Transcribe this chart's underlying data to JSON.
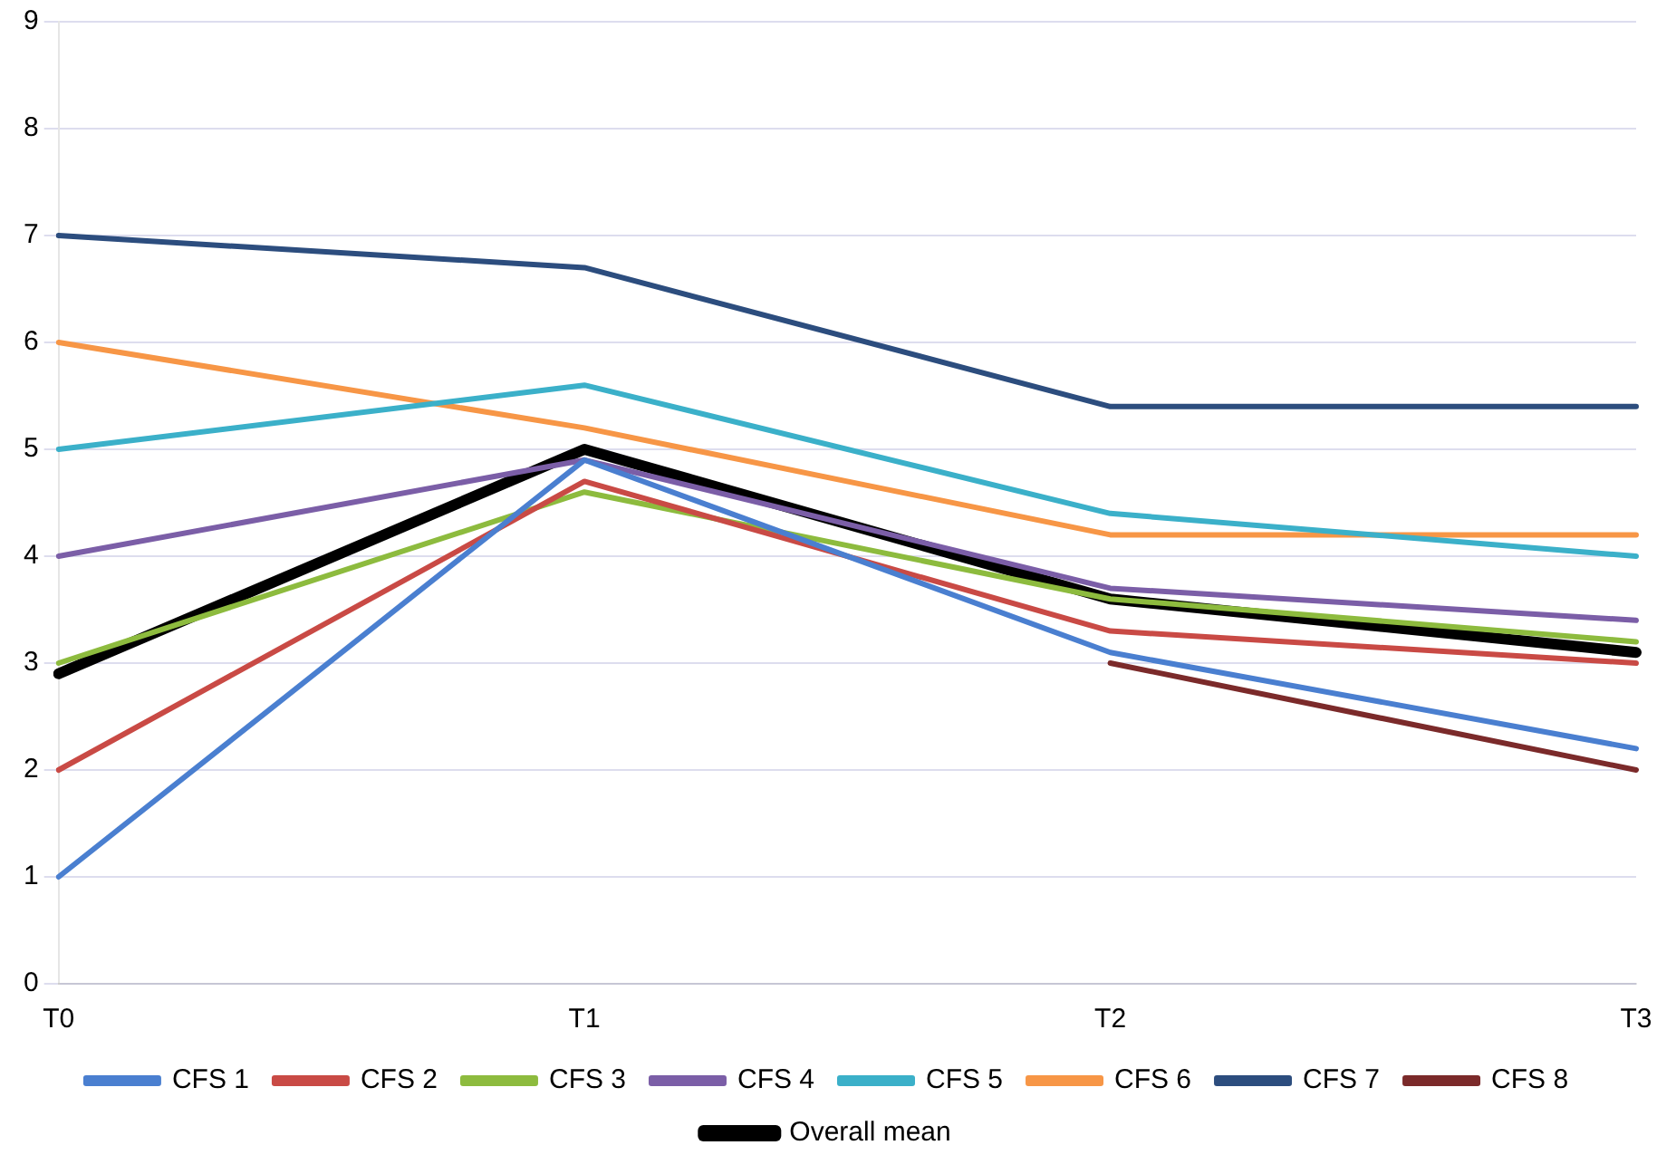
{
  "chart_data": {
    "type": "line",
    "categories": [
      "T0",
      "T1",
      "T2",
      "T3"
    ],
    "ylim": [
      0,
      9
    ],
    "yticks": [
      0,
      1,
      2,
      3,
      4,
      5,
      6,
      7,
      8,
      9
    ],
    "grid": "y",
    "legend": "bottom",
    "marker": "none",
    "line_style": "solid",
    "series": [
      {
        "name": "CFS 1",
        "color": "#4a7fd0",
        "values": [
          1,
          4.9,
          3.1,
          2.2
        ]
      },
      {
        "name": "CFS 2",
        "color": "#c94a45",
        "values": [
          2,
          4.7,
          3.3,
          3.0
        ]
      },
      {
        "name": "CFS 3",
        "color": "#8dbb3e",
        "values": [
          3,
          4.6,
          3.6,
          3.2
        ]
      },
      {
        "name": "CFS 4",
        "color": "#7b5ea7",
        "values": [
          4,
          4.9,
          3.7,
          3.4
        ]
      },
      {
        "name": "CFS 5",
        "color": "#3bb0c9",
        "values": [
          5,
          5.6,
          4.4,
          4.0
        ]
      },
      {
        "name": "CFS 6",
        "color": "#f79646",
        "values": [
          6,
          5.2,
          4.2,
          4.2
        ]
      },
      {
        "name": "CFS 7",
        "color": "#2c4d7e",
        "values": [
          7,
          6.7,
          5.4,
          5.4
        ]
      },
      {
        "name": "CFS 8",
        "color": "#7b2a2a",
        "values": [
          null,
          null,
          3.0,
          2.0
        ]
      },
      {
        "name": "Overall mean",
        "color": "#000000",
        "values": [
          2.9,
          5.0,
          3.6,
          3.1
        ]
      }
    ]
  }
}
